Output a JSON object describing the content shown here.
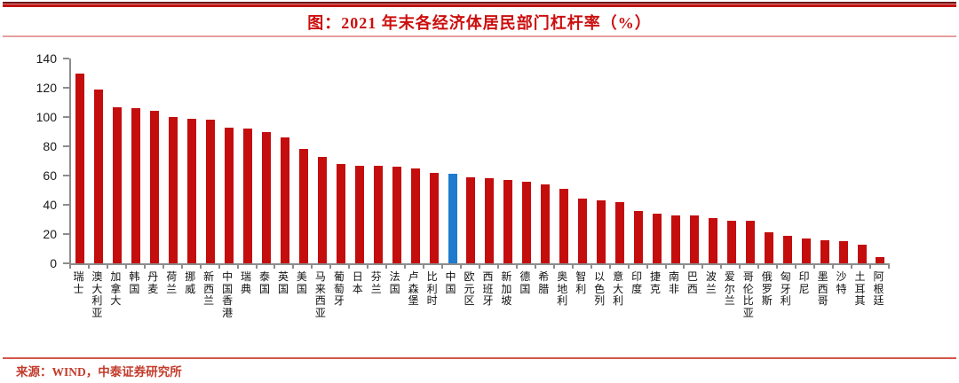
{
  "header": {
    "title": "图：2021 年末各经济体居民部门杠杆率（%）"
  },
  "footer": {
    "source": "来源：WIND，中泰证券研究所"
  },
  "colors": {
    "bar": "#c40d0d",
    "highlight": "#1f7bcd",
    "title_red": "#cc0e0e",
    "footer_red": "#c23b2b",
    "axis_gray": "#8c8c8c"
  },
  "chart_data": {
    "type": "bar",
    "title": "图：2021 年末各经济体居民部门杠杆率（%）",
    "xlabel": "",
    "ylabel": "",
    "ylim": [
      0,
      140
    ],
    "yticks": [
      0,
      20,
      40,
      60,
      80,
      100,
      120,
      140
    ],
    "grid": false,
    "legend": "none",
    "categories": [
      "瑞士",
      "澳大利亚",
      "加拿大",
      "韩国",
      "丹麦",
      "荷兰",
      "挪威",
      "新西兰",
      "中国香港",
      "瑞典",
      "泰国",
      "英国",
      "美国",
      "马来西亚",
      "葡萄牙",
      "日本",
      "芬兰",
      "法国",
      "卢森堡",
      "比利时",
      "中国",
      "欧元区",
      "西班牙",
      "新加坡",
      "德国",
      "希腊",
      "奥地利",
      "智利",
      "以色列",
      "意大利",
      "印度",
      "捷克",
      "南非",
      "巴西",
      "波兰",
      "爱尔兰",
      "哥伦比亚",
      "俄罗斯",
      "匈牙利",
      "印尼",
      "墨西哥",
      "沙特",
      "土耳其",
      "阿根廷"
    ],
    "values": [
      130,
      119,
      107,
      106,
      104,
      100,
      99,
      98,
      93,
      92,
      90,
      86,
      78,
      73,
      68,
      67,
      67,
      66,
      65,
      62,
      61,
      59,
      58,
      57,
      56,
      54,
      51,
      44,
      43,
      42,
      36,
      34,
      33,
      33,
      31,
      29,
      29,
      21,
      19,
      17,
      16,
      15,
      13,
      4
    ],
    "highlight_category": "中国",
    "bar_color": "#c40d0d",
    "highlight_color": "#1f7bcd"
  }
}
